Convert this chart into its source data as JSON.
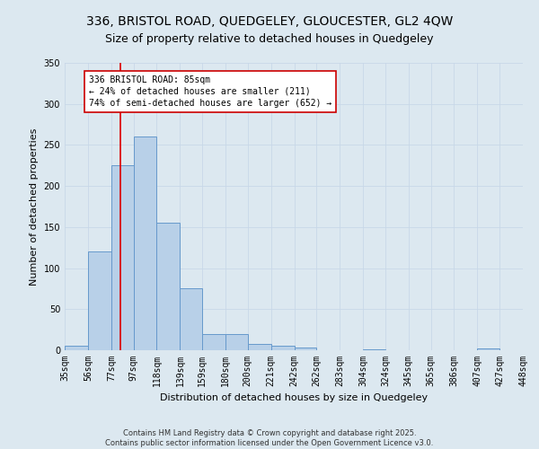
{
  "title1": "336, BRISTOL ROAD, QUEDGELEY, GLOUCESTER, GL2 4QW",
  "title2": "Size of property relative to detached houses in Quedgeley",
  "xlabel": "Distribution of detached houses by size in Quedgeley",
  "ylabel": "Number of detached properties",
  "bin_labels": [
    "35sqm",
    "56sqm",
    "77sqm",
    "97sqm",
    "118sqm",
    "139sqm",
    "159sqm",
    "180sqm",
    "200sqm",
    "221sqm",
    "242sqm",
    "262sqm",
    "283sqm",
    "304sqm",
    "324sqm",
    "345sqm",
    "365sqm",
    "386sqm",
    "407sqm",
    "427sqm",
    "448sqm"
  ],
  "bin_edges": [
    35,
    56,
    77,
    97,
    118,
    139,
    159,
    180,
    200,
    221,
    242,
    262,
    283,
    304,
    324,
    345,
    365,
    386,
    407,
    427,
    448
  ],
  "bar_heights": [
    5,
    120,
    225,
    260,
    155,
    75,
    20,
    20,
    8,
    5,
    3,
    0,
    0,
    1,
    0,
    0,
    0,
    0,
    2,
    0
  ],
  "bar_color": "#b8d0e8",
  "bar_edge_color": "#6699cc",
  "property_size": 85,
  "red_line_color": "#dd0000",
  "annotation_text": "336 BRISTOL ROAD: 85sqm\n← 24% of detached houses are smaller (211)\n74% of semi-detached houses are larger (652) →",
  "annotation_box_color": "#cc0000",
  "annotation_fill": "#ffffff",
  "ylim": [
    0,
    350
  ],
  "yticks": [
    0,
    50,
    100,
    150,
    200,
    250,
    300,
    350
  ],
  "grid_color": "#c8d8e8",
  "bg_color": "#dce8f0",
  "footer": "Contains HM Land Registry data © Crown copyright and database right 2025.\nContains public sector information licensed under the Open Government Licence v3.0.",
  "title1_fontsize": 10,
  "title2_fontsize": 9,
  "axis_label_fontsize": 8,
  "tick_fontsize": 7,
  "annot_fontsize": 7,
  "footer_fontsize": 6
}
